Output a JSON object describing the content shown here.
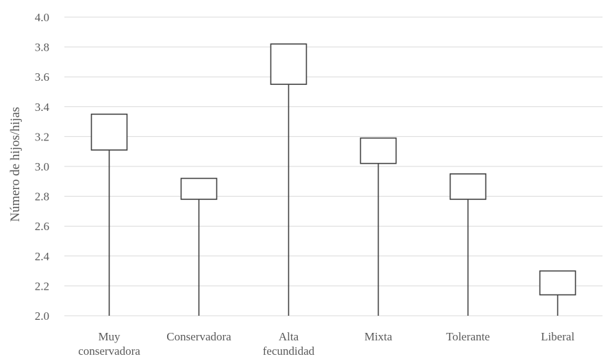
{
  "chart_data": {
    "type": "box",
    "ylabel": "Número de hijos/hijas",
    "ylim": [
      2.0,
      4.0
    ],
    "yticks": [
      "2.0",
      "2.2",
      "2.4",
      "2.6",
      "2.8",
      "3.0",
      "3.2",
      "3.4",
      "3.6",
      "3.8",
      "4.0"
    ],
    "grid": true,
    "categories": [
      [
        "Muy",
        "conservadora"
      ],
      [
        "Conservadora"
      ],
      [
        "Alta",
        "fecundidad"
      ],
      [
        "Mixta"
      ],
      [
        "Tolerante"
      ],
      [
        "Liberal"
      ]
    ],
    "series": [
      {
        "low": 2.0,
        "box_low": 3.11,
        "box_high": 3.35
      },
      {
        "low": 2.0,
        "box_low": 2.78,
        "box_high": 2.92
      },
      {
        "low": 2.0,
        "box_low": 3.55,
        "box_high": 3.82
      },
      {
        "low": 2.0,
        "box_low": 3.02,
        "box_high": 3.19
      },
      {
        "low": 2.0,
        "box_low": 2.78,
        "box_high": 2.95
      },
      {
        "low": 2.0,
        "box_low": 2.14,
        "box_high": 2.3
      }
    ],
    "colors": {
      "stroke": "#404040",
      "grid": "#d9d9d9",
      "text": "#595959"
    }
  }
}
